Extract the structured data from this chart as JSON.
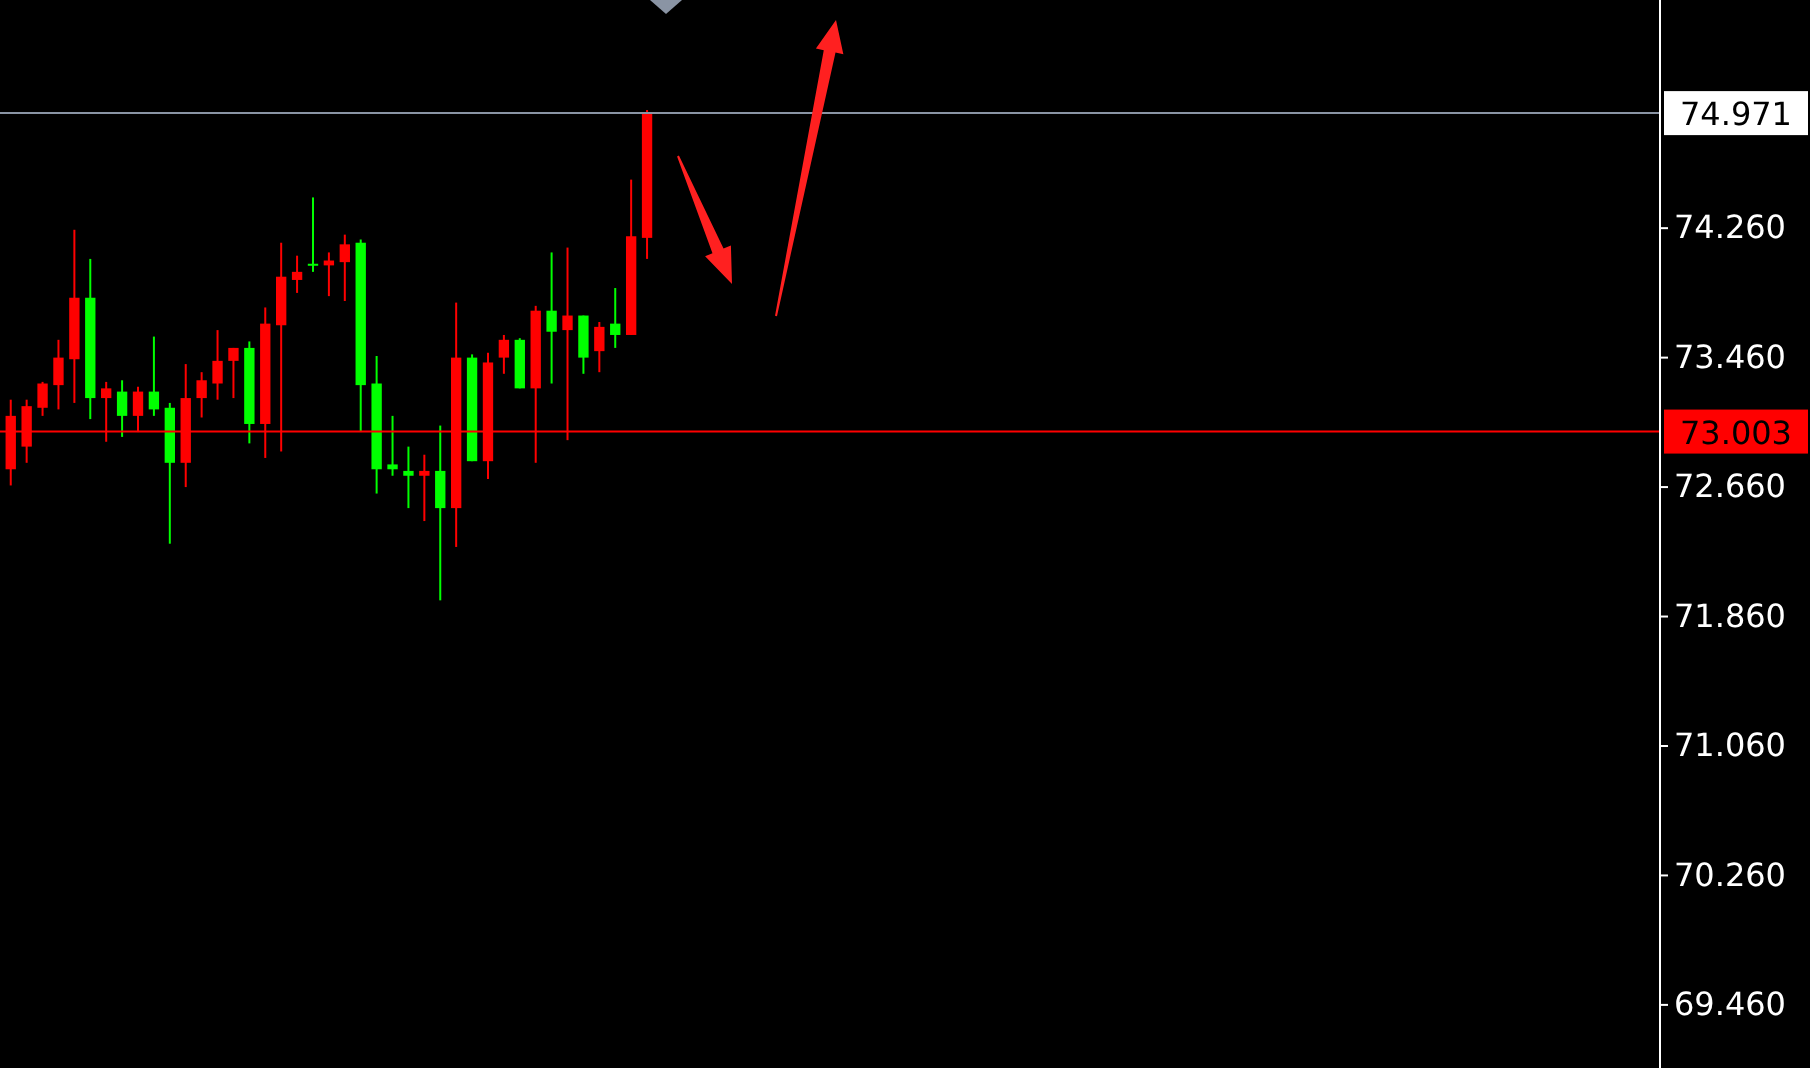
{
  "chart_data": {
    "type": "candlestick",
    "categories": [
      null,
      null,
      null,
      null,
      null,
      null,
      null,
      null,
      null,
      null,
      null,
      null,
      null,
      null,
      null,
      null,
      null,
      null,
      null,
      null,
      null,
      null,
      null,
      null,
      null,
      null,
      null,
      null,
      null,
      null,
      null,
      null,
      null,
      null,
      null,
      null,
      null,
      null,
      null,
      null,
      null,
      null,
      null,
      null,
      null,
      null,
      null,
      null,
      null,
      null,
      null,
      null,
      null,
      null,
      null,
      null,
      null,
      null,
      null,
      null,
      null,
      null,
      null,
      null,
      null,
      null,
      null,
      null,
      null,
      null,
      null,
      null,
      null,
      null,
      null,
      null,
      null,
      null,
      null,
      null,
      null,
      null,
      null,
      null,
      null,
      null,
      null,
      null,
      null,
      null,
      null,
      null,
      null,
      null,
      null,
      null,
      null,
      null,
      null,
      null,
      null,
      null,
      null,
      null
    ],
    "ohlc": [
      [
        72.77,
        73.2,
        72.67,
        73.1
      ],
      [
        72.91,
        73.2,
        72.81,
        73.16
      ],
      [
        73.15,
        73.31,
        73.1,
        73.3
      ],
      [
        73.29,
        73.57,
        73.14,
        73.46
      ],
      [
        73.45,
        74.25,
        73.18,
        73.83
      ],
      [
        73.83,
        74.07,
        73.08,
        73.21
      ],
      [
        73.21,
        73.31,
        72.94,
        73.27
      ],
      [
        73.25,
        73.32,
        72.97,
        73.1
      ],
      [
        73.1,
        73.28,
        73.0,
        73.25
      ],
      [
        73.25,
        73.59,
        73.1,
        73.14
      ],
      [
        73.15,
        73.18,
        72.31,
        72.81
      ],
      [
        72.81,
        73.42,
        72.66,
        73.21
      ],
      [
        73.21,
        73.37,
        73.09,
        73.32
      ],
      [
        73.3,
        73.63,
        73.2,
        73.44
      ],
      [
        73.44,
        73.52,
        73.21,
        73.52
      ],
      [
        73.52,
        73.56,
        72.93,
        73.05
      ],
      [
        73.05,
        73.77,
        72.84,
        73.67
      ],
      [
        73.66,
        74.17,
        72.88,
        73.96
      ],
      [
        73.94,
        74.09,
        73.86,
        73.99
      ],
      [
        74.04,
        74.45,
        73.99,
        74.03
      ],
      [
        74.03,
        74.11,
        73.84,
        74.06
      ],
      [
        74.05,
        74.22,
        73.81,
        74.16
      ],
      [
        74.17,
        74.19,
        73.0,
        73.29
      ],
      [
        73.3,
        73.47,
        72.62,
        72.77
      ],
      [
        72.8,
        73.1,
        72.73,
        72.77
      ],
      [
        72.76,
        72.91,
        72.53,
        72.73
      ],
      [
        72.73,
        72.86,
        72.45,
        72.76
      ],
      [
        72.76,
        73.04,
        71.96,
        72.53
      ],
      [
        72.53,
        73.8,
        72.29,
        73.46
      ],
      [
        73.46,
        73.48,
        72.82,
        72.82
      ],
      [
        72.82,
        73.49,
        72.71,
        73.43
      ],
      [
        73.46,
        73.6,
        73.36,
        73.57
      ],
      [
        73.57,
        73.58,
        73.27,
        73.27
      ],
      [
        73.27,
        73.78,
        72.81,
        73.75
      ],
      [
        73.75,
        74.11,
        73.3,
        73.62
      ],
      [
        73.63,
        74.14,
        72.95,
        73.72
      ],
      [
        73.72,
        73.72,
        73.36,
        73.46
      ],
      [
        73.5,
        73.68,
        73.37,
        73.65
      ],
      [
        73.67,
        73.89,
        73.52,
        73.6
      ],
      [
        73.6,
        74.56,
        73.6,
        74.21
      ],
      [
        74.2,
        74.99,
        74.07,
        74.971
      ],
      null,
      null,
      null,
      null,
      null,
      null,
      null,
      null,
      null,
      null,
      null,
      null,
      null,
      null,
      null,
      null,
      null,
      null,
      null,
      null,
      null,
      null,
      null,
      null,
      null,
      null,
      null,
      null,
      null,
      null,
      null,
      null,
      null,
      null,
      null,
      null,
      null,
      null,
      null,
      null,
      null,
      null,
      null,
      null,
      null,
      null,
      null,
      null,
      null,
      null,
      null,
      null,
      null,
      null,
      null,
      null,
      null,
      null,
      null,
      null,
      null,
      null,
      null
    ],
    "colors": [
      "#ff0000",
      "#ff0000",
      "#ff0000",
      "#ff0000",
      "#ff0000",
      "#00ff00",
      "#ff0000",
      "#00ff00",
      "#ff0000",
      "#00ff00",
      "#00ff00",
      "#ff0000",
      "#ff0000",
      "#ff0000",
      "#ff0000",
      "#00ff00",
      "#ff0000",
      "#ff0000",
      "#ff0000",
      "#00ff00",
      "#ff0000",
      "#ff0000",
      "#00ff00",
      "#00ff00",
      "#00ff00",
      "#00ff00",
      "#ff0000",
      "#00ff00",
      "#ff0000",
      "#00ff00",
      "#ff0000",
      "#ff0000",
      "#00ff00",
      "#ff0000",
      "#00ff00",
      "#ff0000",
      "#00ff00",
      "#ff0000",
      "#00ff00",
      "#ff0000",
      "#ff0000",
      null,
      null,
      null,
      null,
      null,
      null,
      null,
      null,
      null,
      null,
      null,
      null,
      null,
      null,
      null,
      null,
      null,
      null,
      null,
      null,
      null,
      null,
      null,
      null,
      null,
      null,
      null,
      null,
      null,
      null,
      null,
      null,
      null,
      null,
      null,
      null,
      null,
      null,
      null,
      null,
      null,
      null,
      null,
      null,
      null,
      null,
      null,
      null,
      null,
      null,
      null,
      null,
      null,
      null,
      null,
      null,
      null,
      null,
      null,
      null,
      null,
      null,
      null
    ],
    "ylim": [
      69.07,
      75.67
    ],
    "yticks": [
      {
        "value": 74.26,
        "label": "74.260"
      },
      {
        "value": 73.46,
        "label": "73.460"
      },
      {
        "value": 72.66,
        "label": "72.660"
      },
      {
        "value": 71.86,
        "label": "71.860"
      },
      {
        "value": 71.06,
        "label": "71.060"
      },
      {
        "value": 70.26,
        "label": "70.260"
      },
      {
        "value": 69.46,
        "label": "69.460"
      }
    ],
    "tick_labels": "y",
    "grid": false,
    "ref_lines": [
      {
        "axis": "y",
        "value": 74.971,
        "label": "74.971",
        "color": "#8a94a4"
      },
      {
        "axis": "y",
        "value": 73.003,
        "label": "73.003",
        "color": "#ff0000"
      }
    ]
  }
}
